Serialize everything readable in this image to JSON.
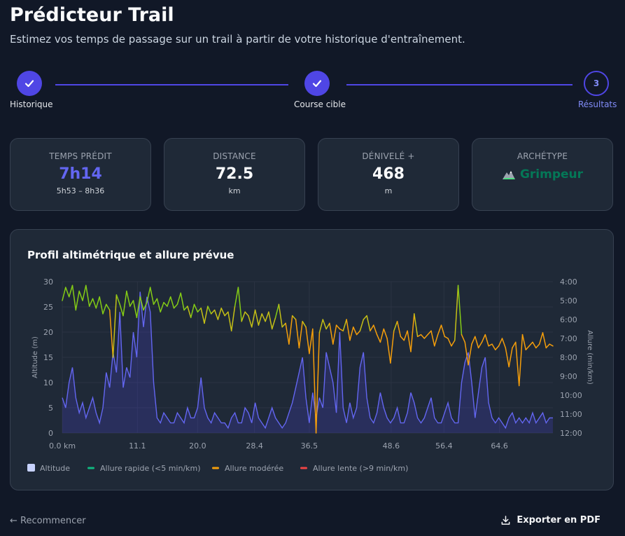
{
  "header": {
    "title": "Prédicteur Trail",
    "subtitle": "Estimez vos temps de passage sur un trail à partir de votre historique d'entraînement."
  },
  "stepper": {
    "steps": [
      {
        "label": "Historique",
        "status": "done"
      },
      {
        "label": "Course cible",
        "status": "done"
      },
      {
        "label": "Résultats",
        "status": "current",
        "number": "3"
      }
    ]
  },
  "stats": {
    "time": {
      "label": "TEMPS PRÉDIT",
      "value": "7h14",
      "range": "5h53 – 8h36"
    },
    "distance": {
      "label": "DISTANCE",
      "value": "72.5",
      "unit": "km"
    },
    "elevation": {
      "label": "DÉNIVELÉ +",
      "value": "468",
      "unit": "m"
    },
    "archetype": {
      "label": "ARCHÉTYPE",
      "icon": "mountain-icon",
      "value": "Grimpeur"
    }
  },
  "colors": {
    "accent": "#4f46e5",
    "archetype_green": "#047857",
    "fast": "#10b981",
    "moderate": "#f59e0b",
    "slow": "#ef4444"
  },
  "chart_data": {
    "type": "line",
    "title": "Profil altimétrique et allure prévue",
    "ylabel": "Altitude (m)",
    "y2label": "Allure (min/km)",
    "ylim": [
      0,
      30
    ],
    "yticks": [
      "0",
      "5",
      "10",
      "15",
      "20",
      "25",
      "30"
    ],
    "y2lim": [
      4,
      12
    ],
    "y2ticks": [
      "4:00",
      "5:00",
      "6:00",
      "7:00",
      "8:00",
      "9:00",
      "10:00",
      "11:00",
      "12:00"
    ],
    "xlim": [
      0,
      72.5
    ],
    "xticks": [
      "0.0 km",
      "11.1",
      "20.0",
      "28.4",
      "36.5",
      "48.6",
      "56.4",
      "64.6"
    ],
    "xtick_positions": [
      0,
      11.1,
      20.0,
      28.4,
      36.5,
      48.6,
      56.4,
      64.6
    ],
    "legend": [
      {
        "label": "Altitude",
        "color": "#c7d2fe",
        "type": "box"
      },
      {
        "label": "Allure rapide (<5 min/km)",
        "color": "#10b981",
        "type": "line"
      },
      {
        "label": "Allure modérée",
        "color": "#f59e0b",
        "type": "line"
      },
      {
        "label": "Allure lente (>9 min/km)",
        "color": "#ef4444",
        "type": "line"
      }
    ],
    "series": [
      {
        "name": "Altitude",
        "axis": "left",
        "x": [
          0,
          0.5,
          1,
          1.5,
          2,
          2.5,
          3,
          3.5,
          4,
          4.5,
          5,
          5.5,
          6,
          6.5,
          7,
          7.5,
          8,
          8.5,
          9,
          9.5,
          10,
          10.5,
          11,
          11.5,
          12,
          12.5,
          13,
          13.5,
          14,
          14.5,
          15,
          15.5,
          16,
          16.5,
          17,
          17.5,
          18,
          18.5,
          19,
          19.5,
          20,
          20.5,
          21,
          21.5,
          22,
          22.5,
          23,
          23.5,
          24,
          24.5,
          25,
          25.5,
          26,
          26.5,
          27,
          27.5,
          28,
          28.5,
          29,
          29.5,
          30,
          30.5,
          31,
          31.5,
          32,
          32.5,
          33,
          33.5,
          34,
          34.5,
          35,
          35.5,
          36,
          36.5,
          37,
          37.5,
          38,
          38.5,
          39,
          39.5,
          40,
          40.5,
          41,
          41.5,
          42,
          42.5,
          43,
          43.5,
          44,
          44.5,
          45,
          45.5,
          46,
          46.5,
          47,
          47.5,
          48,
          48.5,
          49,
          49.5,
          50,
          50.5,
          51,
          51.5,
          52,
          52.5,
          53,
          53.5,
          54,
          54.5,
          55,
          55.5,
          56,
          56.5,
          57,
          57.5,
          58,
          58.5,
          59,
          59.5,
          60,
          60.5,
          61,
          61.5,
          62,
          62.5,
          63,
          63.5,
          64,
          64.5,
          65,
          65.5,
          66,
          66.5,
          67,
          67.5,
          68,
          68.5,
          69,
          69.5,
          70,
          70.5,
          71,
          71.5,
          72,
          72.5
        ],
        "values": [
          7,
          5,
          10,
          13,
          7,
          4,
          6,
          3,
          5,
          7,
          4,
          2,
          5,
          12,
          9,
          16,
          12,
          24,
          9,
          13,
          11,
          20,
          15,
          28,
          21,
          27,
          24,
          10,
          3,
          2,
          4,
          3,
          2,
          2,
          4,
          3,
          2,
          5,
          3,
          3,
          5,
          11,
          5,
          3,
          2,
          4,
          3,
          2,
          2,
          1,
          3,
          4,
          2,
          2,
          5,
          4,
          2,
          6,
          3,
          2,
          1,
          3,
          5,
          3,
          2,
          1,
          2,
          4,
          6,
          9,
          12,
          15,
          7,
          2,
          8,
          3,
          7,
          5,
          16,
          13,
          10,
          4,
          20,
          5,
          2,
          6,
          3,
          5,
          13,
          16,
          7,
          3,
          2,
          4,
          8,
          5,
          3,
          2,
          3,
          5,
          2,
          2,
          4,
          8,
          6,
          3,
          2,
          3,
          5,
          7,
          3,
          2,
          2,
          4,
          6,
          3,
          2,
          2,
          10,
          14,
          16,
          10,
          3,
          8,
          13,
          15,
          6,
          3,
          2,
          3,
          2,
          1,
          3,
          4,
          2,
          3,
          2,
          3,
          2,
          4,
          2,
          3,
          4,
          2,
          3,
          3
        ]
      },
      {
        "name": "Allure",
        "axis": "right",
        "x": [
          0,
          0.5,
          1,
          1.5,
          2,
          2.5,
          3,
          3.5,
          4,
          4.5,
          5,
          5.5,
          6,
          6.5,
          7,
          7.5,
          8,
          8.5,
          9,
          9.5,
          10,
          10.5,
          11,
          11.5,
          12,
          12.5,
          13,
          13.5,
          14,
          14.5,
          15,
          15.5,
          16,
          16.5,
          17,
          17.5,
          18,
          18.5,
          19,
          19.5,
          20,
          20.5,
          21,
          21.5,
          22,
          22.5,
          23,
          23.5,
          24,
          24.5,
          25,
          25.5,
          26,
          26.5,
          27,
          27.5,
          28,
          28.5,
          29,
          29.5,
          30,
          30.5,
          31,
          31.5,
          32,
          32.5,
          33,
          33.5,
          34,
          34.5,
          35,
          35.5,
          36,
          36.5,
          37,
          37.5,
          38,
          38.5,
          39,
          39.5,
          40,
          40.5,
          41,
          41.5,
          42,
          42.5,
          43,
          43.5,
          44,
          44.5,
          45,
          45.5,
          46,
          46.5,
          47,
          47.5,
          48,
          48.5,
          49,
          49.5,
          50,
          50.5,
          51,
          51.5,
          52,
          52.5,
          53,
          53.5,
          54,
          54.5,
          55,
          55.5,
          56,
          56.5,
          57,
          57.5,
          58,
          58.5,
          59,
          59.5,
          60,
          60.5,
          61,
          61.5,
          62,
          62.5,
          63,
          63.5,
          64,
          64.5,
          65,
          65.5,
          66,
          66.5,
          67,
          67.5,
          68,
          68.5,
          69,
          69.5,
          70,
          70.5,
          71,
          71.5,
          72,
          72.5
        ],
        "values": [
          5.0,
          4.3,
          4.8,
          4.2,
          5.5,
          4.5,
          5.0,
          4.2,
          5.3,
          4.9,
          5.4,
          4.8,
          5.7,
          5.2,
          5.5,
          8.0,
          4.7,
          5.2,
          5.8,
          4.5,
          5.3,
          5.0,
          5.9,
          4.8,
          5.5,
          5.1,
          4.3,
          5.2,
          4.9,
          5.6,
          5.1,
          5.3,
          4.8,
          5.4,
          5.2,
          4.6,
          5.5,
          5.3,
          5.9,
          5.2,
          5.6,
          5.4,
          6.2,
          5.3,
          5.7,
          5.5,
          6.0,
          5.4,
          5.8,
          5.6,
          6.6,
          5.3,
          4.3,
          6.1,
          5.6,
          5.8,
          6.4,
          5.5,
          6.3,
          5.7,
          6.1,
          5.6,
          6.5,
          5.9,
          5.2,
          6.4,
          6.2,
          7.3,
          5.8,
          6.0,
          7.5,
          6.1,
          6.4,
          7.8,
          6.5,
          12.0,
          6.7,
          6.0,
          6.5,
          6.2,
          7.3,
          6.3,
          6.5,
          6.6,
          6.0,
          7.1,
          6.4,
          6.8,
          6.6,
          6.0,
          5.8,
          6.6,
          6.3,
          6.8,
          7.2,
          6.5,
          7.0,
          8.3,
          6.6,
          6.1,
          6.9,
          7.1,
          6.6,
          7.7,
          5.7,
          6.9,
          6.8,
          7.0,
          6.8,
          6.6,
          7.4,
          6.8,
          6.3,
          6.9,
          7.0,
          7.4,
          7.1,
          4.2,
          6.8,
          7.2,
          8.4,
          7.3,
          6.9,
          7.5,
          7.2,
          6.8,
          7.4,
          7.3,
          7.6,
          7.4,
          7.0,
          7.5,
          8.5,
          7.5,
          7.2,
          9.5,
          6.8,
          7.6,
          7.4,
          7.2,
          7.5,
          7.3,
          6.7,
          7.5,
          7.3,
          7.4
        ]
      }
    ]
  },
  "chart_legend": {
    "altitude": "Altitude",
    "fast": "Allure rapide (<5 min/km)",
    "moderate": "Allure modérée",
    "slow": "Allure lente (>9 min/km)"
  },
  "footer": {
    "restart": "← Recommencer",
    "export": "Exporter en PDF"
  }
}
